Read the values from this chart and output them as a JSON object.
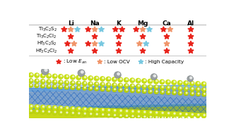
{
  "col_labels": [
    "Li",
    "Na",
    "K",
    "Mg",
    "Ca",
    "Al"
  ],
  "row_labels_tex": [
    "Ti$_3$C$_2$S$_2$",
    "Ti$_3$C$_2$Cl$_2$",
    "Hf$_3$C$_2$S$_2$",
    "Hf$_3$C$_2$Cl$_2$"
  ],
  "star_data": [
    [
      [
        "R",
        "S",
        "C"
      ],
      [
        "R",
        "S",
        "C"
      ],
      [
        "R",
        "R"
      ],
      [
        "R",
        "S",
        "C"
      ],
      [
        "R",
        "S"
      ],
      [
        "R"
      ]
    ],
    [
      [
        "R"
      ],
      [
        "R"
      ],
      [
        "R"
      ],
      [
        "R"
      ],
      [
        "R"
      ],
      [
        "R"
      ]
    ],
    [
      [
        "R",
        "S"
      ],
      [
        "R",
        "S",
        "C"
      ],
      [
        "R"
      ],
      [
        "S",
        "C"
      ],
      [
        "S"
      ],
      [
        "R"
      ]
    ],
    [
      [
        "R"
      ],
      [
        "R"
      ],
      [
        "R"
      ],
      [
        "R"
      ],
      [
        "R"
      ],
      [
        "R"
      ]
    ]
  ],
  "star_colors": {
    "R": "#e8221a",
    "S": "#f0956a",
    "C": "#78c8e0"
  },
  "bg_color": "#ffffff",
  "table_line_color": "#bbbbbb",
  "sphere_yellow": "#c8e010",
  "sphere_gray": "#9aa0a0",
  "sphere_blue": "#4a90d0",
  "sphere_gray_inner": "#a8b0b8"
}
